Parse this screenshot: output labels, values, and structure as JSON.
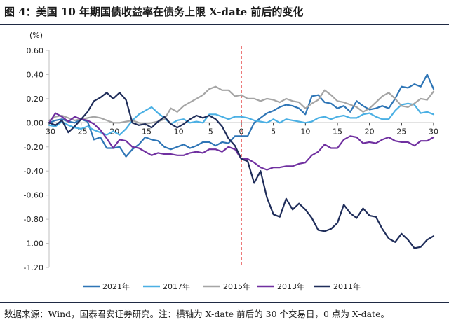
{
  "title": "图 4：美国 10 年期国债收益率在债务上限 X-date 前后的变化",
  "footer": "数据来源：Wind，国泰君安证券研究。注：横轴为 X-date 前后的 30 个交易日，0 点为 X-date。",
  "chart_data": {
    "type": "line",
    "unit_label": "(%)",
    "x": [
      -30,
      -29,
      -28,
      -27,
      -26,
      -25,
      -24,
      -23,
      -22,
      -21,
      -20,
      -19,
      -18,
      -17,
      -16,
      -15,
      -14,
      -13,
      -12,
      -11,
      -10,
      -9,
      -8,
      -7,
      -6,
      -5,
      -4,
      -3,
      -2,
      -1,
      0,
      1,
      2,
      3,
      4,
      5,
      6,
      7,
      8,
      9,
      10,
      11,
      12,
      13,
      14,
      15,
      16,
      17,
      18,
      19,
      20,
      21,
      22,
      23,
      24,
      25,
      26,
      27,
      28,
      29,
      30
    ],
    "xticks": [
      -30,
      -25,
      -20,
      -15,
      -10,
      -5,
      0,
      5,
      10,
      15,
      20,
      25,
      30
    ],
    "ylim": [
      -1.2,
      0.6
    ],
    "yticks": [
      -1.2,
      -1.0,
      -0.8,
      -0.6,
      -0.4,
      -0.2,
      0.0,
      0.2,
      0.4,
      0.6
    ],
    "ytick_labels": [
      "-1.20",
      "-1.00",
      "-0.80",
      "-0.60",
      "-0.40",
      "-0.20",
      "0.00",
      "0.20",
      "0.40",
      "0.60"
    ],
    "vline_x": 0,
    "legend_position": "bottom",
    "series": [
      {
        "name": "2021年",
        "color": "#2e75b6",
        "values": [
          0.0,
          0.02,
          0.03,
          0.01,
          0.0,
          0.03,
          0.01,
          -0.14,
          -0.12,
          -0.21,
          -0.21,
          -0.2,
          -0.28,
          -0.22,
          -0.18,
          -0.12,
          -0.14,
          -0.15,
          -0.2,
          -0.22,
          -0.2,
          -0.18,
          -0.21,
          -0.19,
          -0.16,
          -0.16,
          -0.19,
          -0.16,
          -0.17,
          -0.11,
          -0.11,
          -0.11,
          0.0,
          0.04,
          0.08,
          0.1,
          0.13,
          0.15,
          0.14,
          0.12,
          0.07,
          0.22,
          0.23,
          0.17,
          0.16,
          0.12,
          0.14,
          0.09,
          0.18,
          0.14,
          0.11,
          0.12,
          0.14,
          0.12,
          0.2,
          0.3,
          0.29,
          0.32,
          0.3,
          0.4,
          0.28
        ]
      },
      {
        "name": "2017年",
        "color": "#4bb0e4",
        "values": [
          -0.02,
          -0.03,
          0.01,
          -0.02,
          -0.04,
          -0.05,
          -0.03,
          -0.06,
          -0.08,
          -0.1,
          -0.07,
          -0.1,
          -0.05,
          0.02,
          0.07,
          0.1,
          0.13,
          0.08,
          0.04,
          -0.01,
          0.02,
          0.03,
          0.0,
          0.01,
          0.0,
          0.07,
          0.07,
          0.05,
          0.03,
          0.05,
          0.05,
          0.04,
          0.02,
          0.01,
          0.0,
          0.03,
          0.0,
          0.03,
          0.02,
          0.01,
          0.0,
          0.01,
          0.04,
          0.05,
          0.03,
          0.05,
          0.06,
          0.04,
          0.04,
          0.07,
          0.08,
          0.05,
          0.03,
          0.03,
          0.1,
          0.15,
          0.16,
          0.15,
          0.08,
          0.09,
          0.07
        ]
      },
      {
        "name": "2015年",
        "color": "#a5a5a5",
        "values": [
          0.02,
          0.05,
          0.06,
          0.04,
          0.02,
          0.03,
          0.04,
          0.05,
          0.04,
          0.02,
          0.0,
          0.0,
          0.01,
          0.02,
          0.0,
          -0.01,
          0.0,
          0.01,
          0.03,
          0.12,
          0.09,
          0.14,
          0.17,
          0.2,
          0.23,
          0.28,
          0.3,
          0.27,
          0.27,
          0.22,
          0.23,
          0.2,
          0.2,
          0.18,
          0.2,
          0.19,
          0.17,
          0.2,
          0.18,
          0.17,
          0.12,
          0.16,
          0.19,
          0.27,
          0.23,
          0.18,
          0.17,
          0.15,
          0.13,
          0.09,
          0.12,
          0.17,
          0.22,
          0.25,
          0.2,
          0.14,
          0.13,
          0.16,
          0.2,
          0.19,
          0.26
        ]
      },
      {
        "name": "2013年",
        "color": "#7030a0",
        "values": [
          0.0,
          0.08,
          0.05,
          0.01,
          0.05,
          0.03,
          0.02,
          -0.01,
          -0.06,
          -0.13,
          -0.21,
          -0.14,
          -0.15,
          -0.2,
          -0.21,
          -0.24,
          -0.27,
          -0.25,
          -0.26,
          -0.26,
          -0.27,
          -0.27,
          -0.25,
          -0.24,
          -0.25,
          -0.22,
          -0.22,
          -0.24,
          -0.2,
          -0.22,
          -0.3,
          -0.3,
          -0.33,
          -0.37,
          -0.39,
          -0.37,
          -0.37,
          -0.36,
          -0.36,
          -0.34,
          -0.33,
          -0.27,
          -0.24,
          -0.18,
          -0.21,
          -0.21,
          -0.14,
          -0.11,
          -0.12,
          -0.17,
          -0.16,
          -0.17,
          -0.14,
          -0.12,
          -0.15,
          -0.16,
          -0.16,
          -0.19,
          -0.15,
          -0.15,
          -0.12
        ]
      },
      {
        "name": "2011年",
        "color": "#1f2d5a",
        "values": [
          0.0,
          -0.02,
          0.02,
          -0.08,
          -0.03,
          0.03,
          0.09,
          0.18,
          0.21,
          0.25,
          0.2,
          0.25,
          0.19,
          0.0,
          -0.02,
          -0.01,
          -0.04,
          0.01,
          0.05,
          -0.01,
          -0.04,
          -0.01,
          0.03,
          0.06,
          0.04,
          0.06,
          0.03,
          -0.03,
          -0.13,
          -0.19,
          -0.3,
          -0.32,
          -0.5,
          -0.4,
          -0.62,
          -0.76,
          -0.78,
          -0.63,
          -0.72,
          -0.67,
          -0.72,
          -0.79,
          -0.89,
          -0.9,
          -0.88,
          -0.83,
          -0.68,
          -0.75,
          -0.79,
          -0.71,
          -0.77,
          -0.78,
          -0.88,
          -0.96,
          -0.99,
          -0.92,
          -0.97,
          -1.04,
          -1.03,
          -0.97,
          -0.94
        ]
      }
    ]
  }
}
